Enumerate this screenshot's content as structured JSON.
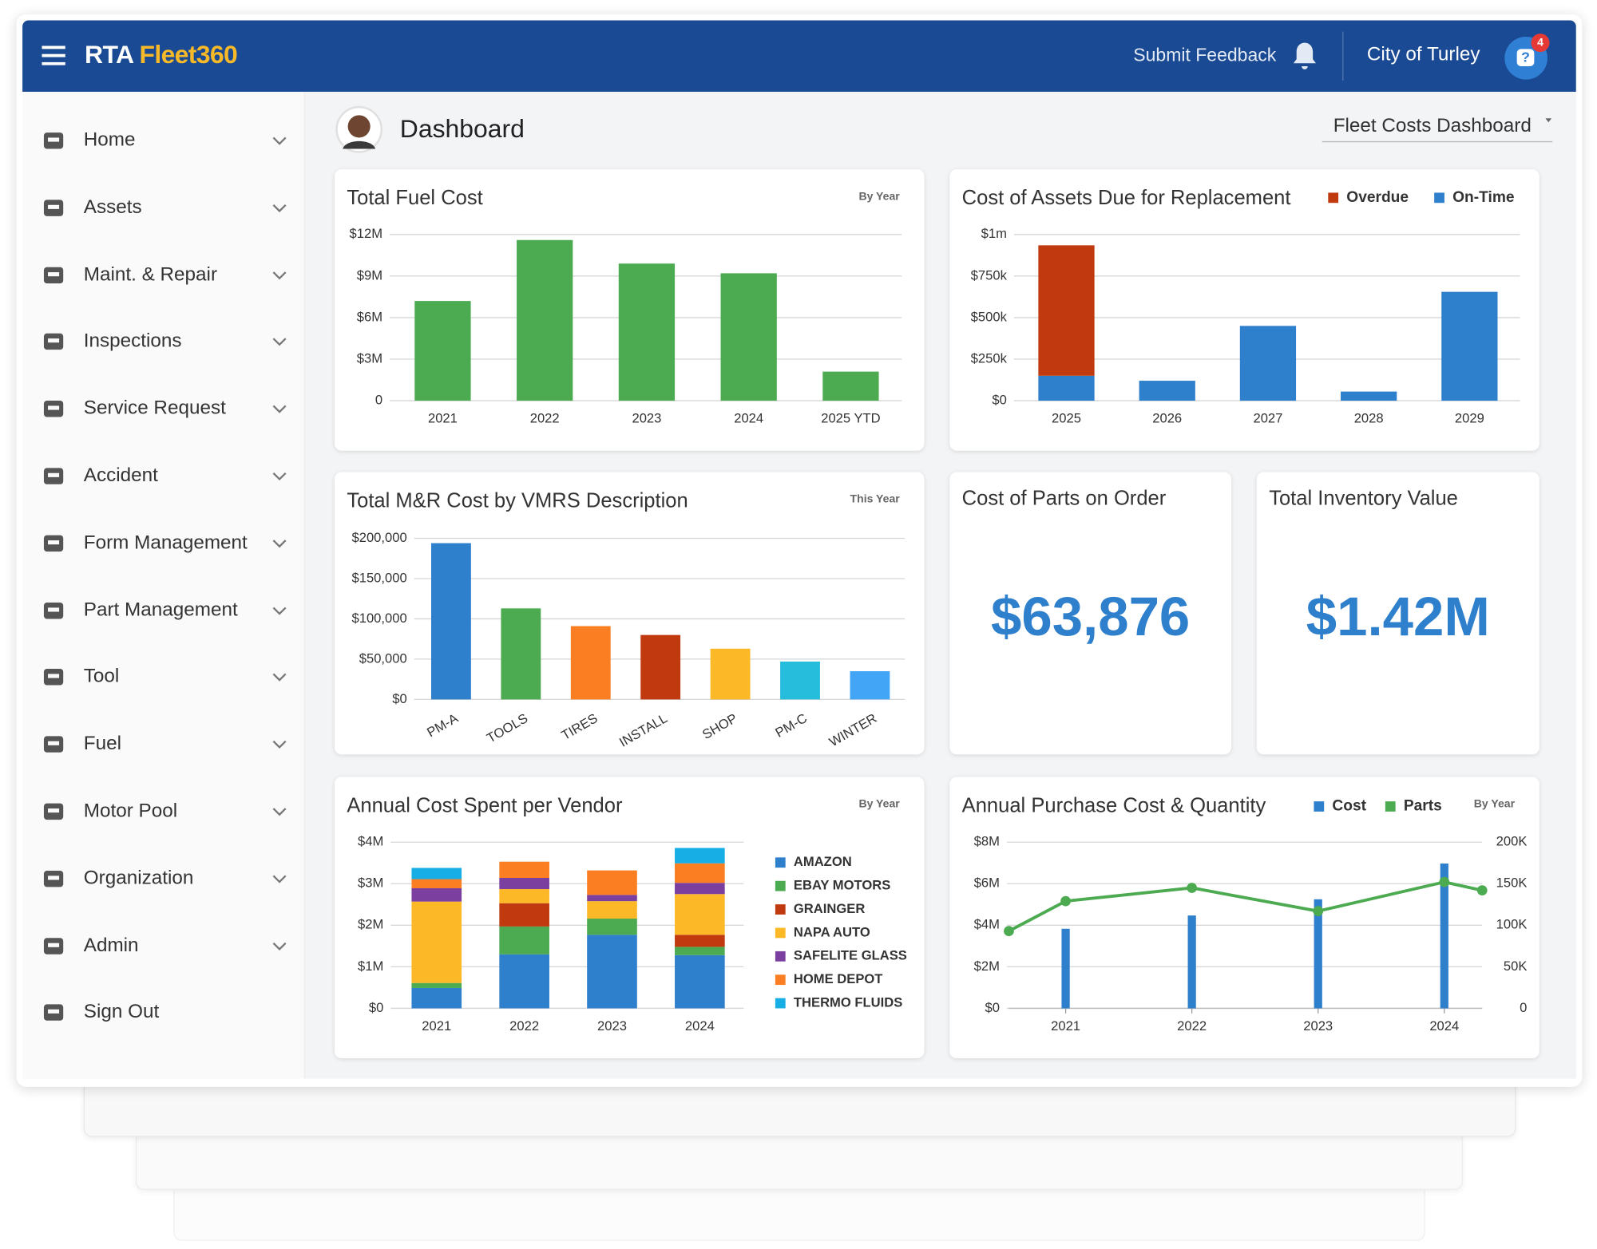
{
  "header": {
    "logo_prefix": "RTA",
    "logo_product": "Fleet360",
    "feedback": "Submit Feedback",
    "org": "City of Turley",
    "badge": 4
  },
  "sidebar": {
    "items": [
      "Home",
      "Assets",
      "Maint. & Repair",
      "Inspections",
      "Service Request",
      "Accident",
      "Form Management",
      "Part Management",
      "Tool",
      "Fuel",
      "Motor Pool",
      "Organization",
      "Admin",
      "Sign Out"
    ]
  },
  "page": {
    "title": "Dashboard",
    "selector": "Fleet Costs Dashboard"
  },
  "kpis": [
    {
      "title": "Cost of Parts on Order",
      "value": "$63,876"
    },
    {
      "title": "Total Inventory Value",
      "value": "$1.42M"
    }
  ],
  "chart_data": [
    {
      "type": "bar",
      "title": "Total Fuel Cost",
      "subtitle": "By Year",
      "grid": true,
      "color": "#4caa50",
      "categories": [
        "2021",
        "2022",
        "2023",
        "2024",
        "2025 YTD"
      ],
      "values": [
        7200000,
        11600000,
        9900000,
        9200000,
        2100000
      ],
      "ylim": [
        0,
        12000000
      ],
      "yticks": [
        0,
        {
          "value": 3000000,
          "label": "$3M"
        },
        {
          "value": 6000000,
          "label": "$6M"
        },
        {
          "value": 9000000,
          "label": "$9M"
        },
        {
          "value": 12000000,
          "label": "$12M"
        }
      ]
    },
    {
      "type": "stacked",
      "title": "Cost of Assets Due for Replacement",
      "grid": true,
      "legend": "top-right",
      "categories": [
        "2025",
        "2026",
        "2027",
        "2028",
        "2029"
      ],
      "series": [
        {
          "name": "On-Time",
          "color": "#2e7fcc",
          "values": [
            150000,
            120000,
            450000,
            55000,
            655000
          ]
        },
        {
          "name": "Overdue",
          "color": "#c0390f",
          "values": [
            785000,
            0,
            0,
            0,
            0
          ]
        }
      ],
      "legend_order": [
        1,
        0
      ],
      "ylim": [
        0,
        1000000
      ],
      "yticks": [
        {
          "value": 0,
          "label": "$0"
        },
        {
          "value": 250000,
          "label": "$250k"
        },
        {
          "value": 500000,
          "label": "$500k"
        },
        {
          "value": 750000,
          "label": "$750k"
        },
        {
          "value": 1000000,
          "label": "$1m"
        }
      ]
    },
    {
      "type": "bar",
      "title": "Total M&R Cost by VMRS Description",
      "subtitle": "This Year",
      "grid": true,
      "label_angle": -30,
      "categories": [
        "PM-A",
        "TOOLS",
        "TIRES",
        "INSTALL",
        "SHOP",
        "PM-C",
        "WINTER"
      ],
      "values": [
        194000,
        113000,
        91000,
        80000,
        63000,
        47000,
        35000
      ],
      "colors": [
        "#2e7fcc",
        "#4caa50",
        "#fb7e22",
        "#c0390f",
        "#fdb827",
        "#26bcdc",
        "#42a5f5"
      ],
      "ylim": [
        0,
        200000
      ],
      "yticks": [
        {
          "value": 0,
          "label": "$0"
        },
        {
          "value": 50000,
          "label": "$50,000"
        },
        {
          "value": 100000,
          "label": "$100,000"
        },
        {
          "value": 150000,
          "label": "$150,000"
        },
        {
          "value": 200000,
          "label": "$200,000"
        }
      ]
    },
    {
      "type": "stacked",
      "title": "Annual Cost Spent per Vendor",
      "subtitle": "By Year",
      "grid": true,
      "legend": "right",
      "categories": [
        "2021",
        "2022",
        "2023",
        "2024"
      ],
      "series": [
        {
          "name": "AMAZON",
          "color": "#2e7fcc",
          "values": [
            490000,
            1300000,
            1770000,
            1280000
          ]
        },
        {
          "name": "EBAY MOTORS",
          "color": "#4caa50",
          "values": [
            120000,
            670000,
            390000,
            200000
          ]
        },
        {
          "name": "GRAINGER",
          "color": "#c0390f",
          "values": [
            0,
            560000,
            0,
            290000
          ]
        },
        {
          "name": "NAPA AUTO",
          "color": "#fdb827",
          "values": [
            1960000,
            340000,
            420000,
            980000
          ]
        },
        {
          "name": "SAFELITE GLASS",
          "color": "#7b3fa0",
          "values": [
            320000,
            270000,
            150000,
            270000
          ]
        },
        {
          "name": "HOME DEPOT",
          "color": "#fb7e22",
          "values": [
            220000,
            390000,
            590000,
            470000
          ]
        },
        {
          "name": "THERMO FLUIDS",
          "color": "#16aee5",
          "values": [
            270000,
            0,
            0,
            370000
          ]
        }
      ],
      "ylim": [
        0,
        4000000
      ],
      "yticks": [
        {
          "value": 0,
          "label": "$0"
        },
        {
          "value": 1000000,
          "label": "$1M"
        },
        {
          "value": 2000000,
          "label": "$2M"
        },
        {
          "value": 3000000,
          "label": "$3M"
        },
        {
          "value": 4000000,
          "label": "$4M"
        }
      ]
    },
    {
      "type": "combo",
      "title": "Annual Purchase Cost & Quantity",
      "subtitle": "By Year",
      "grid": true,
      "legend": "top-right",
      "series": [
        {
          "name": "Cost",
          "color": "#2e7fcc",
          "kind": "bar",
          "x": [
            2021,
            2022,
            2023,
            2024
          ],
          "values": [
            3830000,
            4470000,
            5250000,
            6970000
          ]
        },
        {
          "name": "Parts",
          "color": "#4caa50",
          "kind": "line",
          "axis": "y2",
          "x": [
            2020.55,
            2021,
            2022,
            2023,
            2024,
            2024.3
          ],
          "values": [
            93000,
            129000,
            145000,
            117000,
            152000,
            142000
          ]
        }
      ],
      "xlim": [
        2020.55,
        2024.3
      ],
      "xticks": [
        2021,
        2022,
        2023,
        2024
      ],
      "ylim": [
        0,
        8000000
      ],
      "yticks": [
        {
          "value": 0,
          "label": "$0"
        },
        {
          "value": 2000000,
          "label": "$2M"
        },
        {
          "value": 4000000,
          "label": "$4M"
        },
        {
          "value": 6000000,
          "label": "$6M"
        },
        {
          "value": 8000000,
          "label": "$8M"
        }
      ],
      "y2lim": [
        0,
        200000
      ],
      "y2ticks": [
        0,
        {
          "value": 50000,
          "label": "50K"
        },
        {
          "value": 100000,
          "label": "100K"
        },
        {
          "value": 150000,
          "label": "150K"
        },
        {
          "value": 200000,
          "label": "200K"
        }
      ]
    }
  ]
}
